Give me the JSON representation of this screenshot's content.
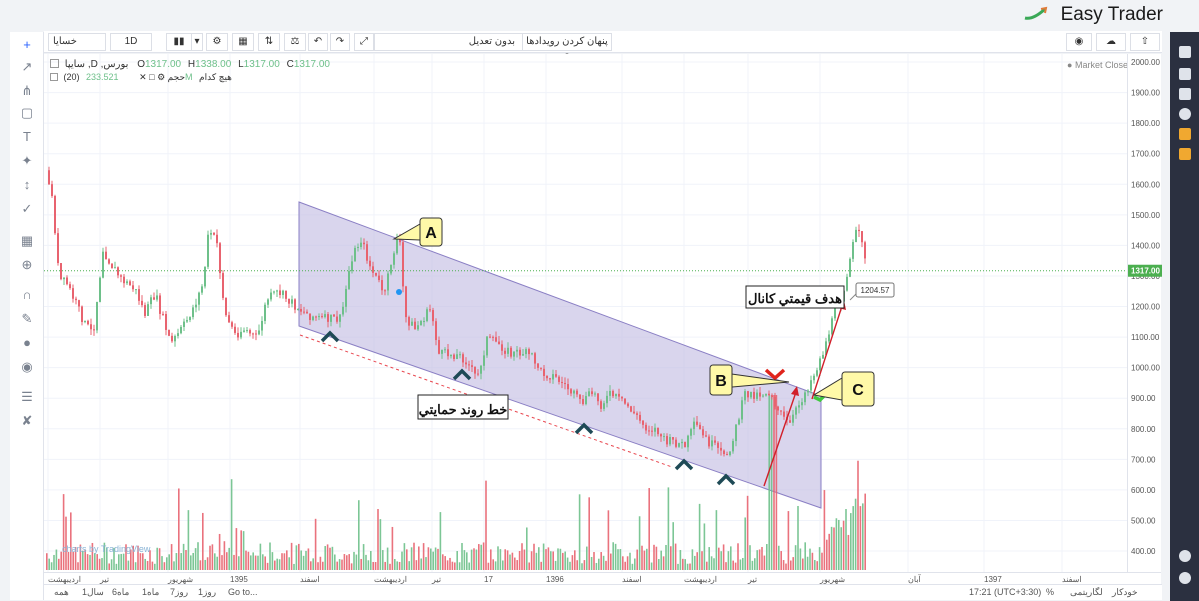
{
  "brand": {
    "name": "Easy Trader"
  },
  "toolbar": {
    "symbol": "خسایا",
    "interval": "1D",
    "adjust": "بدون تعديل",
    "hide_events": "پنهان کردن رویدادها",
    "hide_events_icon": "eye-icon"
  },
  "legend": {
    "title": "سایپا ,D ,بورس",
    "open_label": "O",
    "open": "1317.00",
    "high_label": "H",
    "high": "1338.00",
    "low_label": "L",
    "low": "1317.00",
    "close_label": "C",
    "close": "1317.00",
    "vol_label": "هيچ كدام",
    "vol_value": "233.521M",
    "vol_indicator": "(20) حجم",
    "market_status": "Market Closed"
  },
  "price_axis": {
    "ticks": [
      "2000.00",
      "1900.00",
      "1800.00",
      "1700.00",
      "1600.00",
      "1500.00",
      "1400.00",
      "1300.00",
      "1200.00",
      "1100.00",
      "1000.00",
      "900.00",
      "800.00",
      "700.00",
      "600.00",
      "500.00",
      "400.00"
    ],
    "current_price": "1317.00"
  },
  "time_axis": {
    "ticks": [
      "اردیبهشت",
      "تیر",
      "شهریور",
      "1395",
      "اسفند",
      "اردیبهشت",
      "تیر",
      "17",
      "1396",
      "اسفند",
      "اردیبهشت",
      "تیر",
      "شهریور",
      "آبان",
      "1397",
      "اسفند"
    ]
  },
  "annotations": {
    "label_a": "A",
    "label_b": "B",
    "label_c": "C",
    "support_line": "خط روند حمايتي",
    "channel_target": "هدف قيمتي كانال",
    "price_tag": "1204.57",
    "watermark": "charts by TradingView"
  },
  "bottom_bar": {
    "ranges": [
      "همه",
      "1سال",
      "6ماه",
      "1ماه",
      "7روز",
      "1روز",
      "Go to..."
    ],
    "clock": "17:21 (UTC+3:30)",
    "percent": "%",
    "log": "لگاریتمی",
    "auto": "خودکار"
  },
  "colors": {
    "up": "#6ec08a",
    "down": "#e8636f",
    "channel_fill": "#c5bfe3",
    "channel_line": "#8a7fc4",
    "current_price": "#4caf50"
  }
}
